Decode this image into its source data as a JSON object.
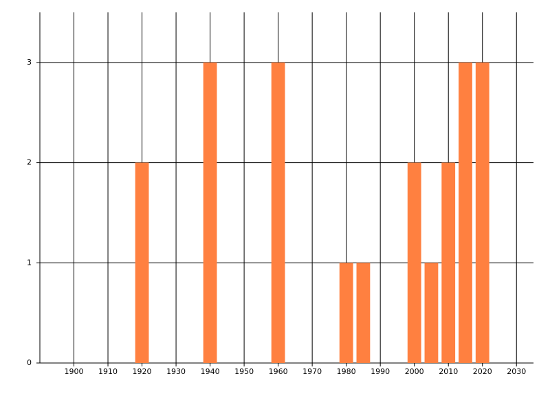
{
  "chart_data": {
    "type": "bar",
    "x": [
      1920,
      1940,
      1960,
      1980,
      1985,
      2000,
      2005,
      2010,
      2015,
      2020
    ],
    "values": [
      2,
      3,
      3,
      1,
      1,
      2,
      1,
      2,
      3,
      3
    ],
    "color": "#ff8040",
    "xlim": [
      1890,
      2035
    ],
    "xticks": [
      1900,
      1910,
      1920,
      1930,
      1940,
      1950,
      1960,
      1970,
      1980,
      1990,
      2000,
      2010,
      2020,
      2030
    ],
    "ylim": [
      0,
      3.5
    ],
    "yticks": [
      0,
      1,
      2,
      3
    ],
    "grid": true
  }
}
